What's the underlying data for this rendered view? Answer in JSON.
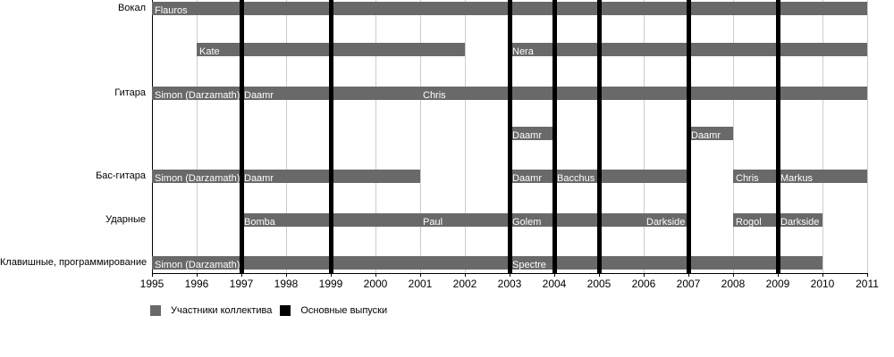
{
  "chart_data": {
    "type": "timeline",
    "x_axis": {
      "min": 1995,
      "max": 2011,
      "ticks": [
        1995,
        1996,
        1997,
        1998,
        1999,
        2000,
        2001,
        2002,
        2003,
        2004,
        2005,
        2006,
        2007,
        2008,
        2009,
        2010,
        2011
      ]
    },
    "lanes": [
      {
        "label": "Вокал",
        "segments": [
          {
            "name": "Flauros",
            "start": 1995,
            "end": 2011
          }
        ]
      },
      {
        "label": "",
        "segments": [
          {
            "name": "Kate",
            "start": 1996,
            "end": 2002
          },
          {
            "name": "Nera",
            "start": 2003,
            "end": 2011
          }
        ]
      },
      {
        "label": "Гитара",
        "segments": [
          {
            "name": "Simon (Darzamath)",
            "start": 1995,
            "end": 1997
          },
          {
            "name": "Daamr",
            "start": 1997,
            "end": 2001
          },
          {
            "name": "Chris",
            "start": 2001,
            "end": 2011
          }
        ]
      },
      {
        "label": "",
        "segments": [
          {
            "name": "Daamr",
            "start": 2003,
            "end": 2004
          },
          {
            "name": "Daamr",
            "start": 2007,
            "end": 2008
          }
        ]
      },
      {
        "label": "Бас-гитара",
        "segments": [
          {
            "name": "Simon (Darzamath)",
            "start": 1995,
            "end": 1997
          },
          {
            "name": "Daamr",
            "start": 1997,
            "end": 2001
          },
          {
            "name": "Daamr",
            "start": 2003,
            "end": 2004
          },
          {
            "name": "Bacchus",
            "start": 2004,
            "end": 2007
          },
          {
            "name": "Chris",
            "start": 2008,
            "end": 2009
          },
          {
            "name": "Markus",
            "start": 2009,
            "end": 2011
          }
        ]
      },
      {
        "label": "Ударные",
        "segments": [
          {
            "name": "Bomba",
            "start": 1997,
            "end": 2001
          },
          {
            "name": "Paul",
            "start": 2001,
            "end": 2003
          },
          {
            "name": "Golem",
            "start": 2003,
            "end": 2006
          },
          {
            "name": "Darkside",
            "start": 2006,
            "end": 2007
          },
          {
            "name": "Rogol",
            "start": 2008,
            "end": 2009
          },
          {
            "name": "Darkside",
            "start": 2009,
            "end": 2010
          }
        ]
      },
      {
        "label": "Клавишные, программирование",
        "segments": [
          {
            "name": "Simon (Darzamath)",
            "start": 1995,
            "end": 2003
          },
          {
            "name": "Spectre",
            "start": 2003,
            "end": 2010
          }
        ]
      }
    ],
    "release_years": [
      1997,
      1999,
      2003,
      2004,
      2005,
      2007,
      2009
    ],
    "legend": {
      "members_label": "Участники коллектива",
      "releases_label": "Основные выпуски"
    },
    "colors": {
      "member_bar": "#696969",
      "release_line": "#000000",
      "grid_line": "#cccccc",
      "axis_line": "#000000",
      "bar_text": "#ffffff",
      "label_text": "#000000"
    }
  }
}
